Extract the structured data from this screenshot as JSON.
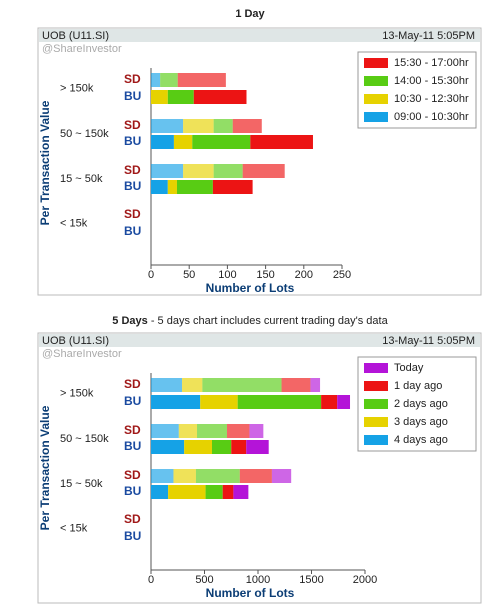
{
  "chart_data": [
    {
      "type": "bar",
      "title": "1 Day",
      "ticker": "UOB (U11.SI)",
      "timestamp": "13-May-11 5:05PM",
      "watermark": "@ShareInvestor",
      "y_axis_label": "Per Transaction Value",
      "x_axis_label": "Number of Lots",
      "groups": [
        "> 150k",
        "50 ~ 150k",
        "15 ~ 50k",
        "< 15k"
      ],
      "sides": [
        "SD",
        "BU"
      ],
      "series": [
        {
          "name": "09:00 - 10:30hr",
          "color": "#15a2e6",
          "values": [
            [
              12,
              0
            ],
            [
              42,
              30
            ],
            [
              42,
              22
            ],
            [
              0,
              0
            ]
          ]
        },
        {
          "name": "10:30 - 12:30hr",
          "color": "#e6d200",
          "values": [
            [
              0,
              22
            ],
            [
              40,
              24
            ],
            [
              40,
              12
            ],
            [
              0,
              0
            ]
          ]
        },
        {
          "name": "14:00 - 15:30hr",
          "color": "#58cc14",
          "values": [
            [
              23,
              34
            ],
            [
              25,
              76
            ],
            [
              38,
              47
            ],
            [
              0,
              0
            ]
          ]
        },
        {
          "name": "15:30 - 17:00hr",
          "color": "#ec1414",
          "values": [
            [
              63,
              69
            ],
            [
              38,
              82
            ],
            [
              55,
              52
            ],
            [
              0,
              0
            ]
          ]
        }
      ],
      "xlim": [
        0,
        250
      ],
      "xticks": [
        0,
        50,
        100,
        150,
        200,
        250
      ],
      "stacked": true,
      "legend": "top-right"
    },
    {
      "type": "bar",
      "title": "5 Days",
      "subtitle": "- 5 days chart includes current trading day's data",
      "ticker": "UOB (U11.SI)",
      "timestamp": "13-May-11 5:05PM",
      "watermark": "@ShareInvestor",
      "y_axis_label": "Per Transaction Value",
      "x_axis_label": "Number of Lots",
      "groups": [
        "> 150k",
        "50 ~ 150k",
        "15 ~ 50k",
        "< 15k"
      ],
      "sides": [
        "SD",
        "BU"
      ],
      "series": [
        {
          "name": "4 days ago",
          "color": "#15a2e6",
          "values": [
            [
              290,
              460
            ],
            [
              260,
              310
            ],
            [
              210,
              160
            ],
            [
              0,
              0
            ]
          ]
        },
        {
          "name": "3 days ago",
          "color": "#e6d200",
          "values": [
            [
              190,
              350
            ],
            [
              170,
              260
            ],
            [
              210,
              350
            ],
            [
              0,
              0
            ]
          ]
        },
        {
          "name": "2 days ago",
          "color": "#58cc14",
          "values": [
            [
              740,
              780
            ],
            [
              280,
              180
            ],
            [
              410,
              160
            ],
            [
              0,
              0
            ]
          ]
        },
        {
          "name": "1 day ago",
          "color": "#ec1414",
          "values": [
            [
              270,
              150
            ],
            [
              210,
              140
            ],
            [
              300,
              100
            ],
            [
              0,
              0
            ]
          ]
        },
        {
          "name": "Today",
          "color": "#b414d8",
          "values": [
            [
              90,
              120
            ],
            [
              130,
              210
            ],
            [
              180,
              140
            ],
            [
              0,
              0
            ]
          ]
        }
      ],
      "xlim": [
        0,
        2000
      ],
      "xticks": [
        0,
        500,
        1000,
        1500,
        2000
      ],
      "stacked": true,
      "legend": "top-right"
    }
  ]
}
